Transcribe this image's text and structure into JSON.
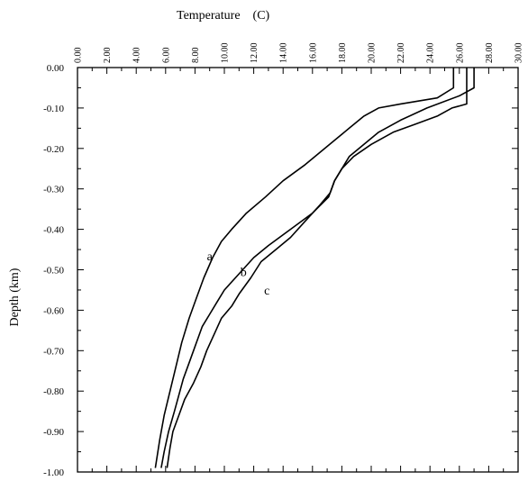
{
  "chart_data": {
    "type": "line",
    "title": "",
    "xlabel": "Temperature    (C)",
    "ylabel": "Depth  (km)",
    "xlim": [
      0,
      30
    ],
    "ylim": [
      -1.0,
      0.0
    ],
    "x_ticks": [
      "0.00",
      "2.00",
      "4.00",
      "6.00",
      "8.00",
      "10.00",
      "12.00",
      "14.00",
      "16.00",
      "18.00",
      "20.00",
      "22.00",
      "24.00",
      "26.00",
      "28.00",
      "30.00"
    ],
    "y_ticks": [
      "0.00",
      "-0.10",
      "-0.20",
      "-0.30",
      "-0.40",
      "-0.50",
      "-0.60",
      "-0.70",
      "-0.80",
      "-0.90",
      "-1.00"
    ],
    "grid": false,
    "axis_position": "x-axis on top",
    "series": [
      {
        "label": "a",
        "points": [
          [
            25.6,
            0.0
          ],
          [
            25.6,
            -0.05
          ],
          [
            24.5,
            -0.075
          ],
          [
            22.0,
            -0.09
          ],
          [
            20.5,
            -0.1
          ],
          [
            19.5,
            -0.12
          ],
          [
            18.5,
            -0.15
          ],
          [
            17.5,
            -0.18
          ],
          [
            16.5,
            -0.21
          ],
          [
            15.5,
            -0.24
          ],
          [
            14.0,
            -0.28
          ],
          [
            12.8,
            -0.32
          ],
          [
            11.5,
            -0.36
          ],
          [
            10.5,
            -0.4
          ],
          [
            9.8,
            -0.43
          ],
          [
            9.2,
            -0.47
          ],
          [
            8.6,
            -0.52
          ],
          [
            8.1,
            -0.57
          ],
          [
            7.6,
            -0.62
          ],
          [
            7.1,
            -0.68
          ],
          [
            6.7,
            -0.74
          ],
          [
            6.3,
            -0.8
          ],
          [
            5.9,
            -0.86
          ],
          [
            5.6,
            -0.92
          ],
          [
            5.3,
            -0.99
          ]
        ]
      },
      {
        "label": "b",
        "points": [
          [
            27.0,
            0.0
          ],
          [
            27.0,
            -0.05
          ],
          [
            26.0,
            -0.07
          ],
          [
            23.8,
            -0.1
          ],
          [
            22.0,
            -0.13
          ],
          [
            20.5,
            -0.16
          ],
          [
            19.5,
            -0.19
          ],
          [
            18.5,
            -0.22
          ],
          [
            18.0,
            -0.25
          ],
          [
            17.5,
            -0.28
          ],
          [
            17.1,
            -0.32
          ],
          [
            16.0,
            -0.36
          ],
          [
            14.5,
            -0.4
          ],
          [
            13.0,
            -0.44
          ],
          [
            12.0,
            -0.47
          ],
          [
            11.0,
            -0.51
          ],
          [
            10.0,
            -0.55
          ],
          [
            9.5,
            -0.58
          ],
          [
            9.0,
            -0.61
          ],
          [
            8.5,
            -0.64
          ],
          [
            8.0,
            -0.69
          ],
          [
            7.6,
            -0.73
          ],
          [
            7.2,
            -0.77
          ],
          [
            6.9,
            -0.81
          ],
          [
            6.6,
            -0.85
          ],
          [
            6.2,
            -0.9
          ],
          [
            5.9,
            -0.95
          ],
          [
            5.7,
            -0.99
          ]
        ]
      },
      {
        "label": "c",
        "points": [
          [
            26.5,
            0.0
          ],
          [
            26.5,
            -0.09
          ],
          [
            25.5,
            -0.1
          ],
          [
            24.5,
            -0.12
          ],
          [
            23.0,
            -0.14
          ],
          [
            21.5,
            -0.16
          ],
          [
            20.0,
            -0.19
          ],
          [
            18.8,
            -0.22
          ],
          [
            18.0,
            -0.25
          ],
          [
            17.5,
            -0.28
          ],
          [
            17.2,
            -0.31
          ],
          [
            16.5,
            -0.34
          ],
          [
            15.5,
            -0.38
          ],
          [
            14.5,
            -0.42
          ],
          [
            13.5,
            -0.45
          ],
          [
            12.5,
            -0.48
          ],
          [
            11.8,
            -0.52
          ],
          [
            11.0,
            -0.56
          ],
          [
            10.5,
            -0.59
          ],
          [
            9.8,
            -0.62
          ],
          [
            9.3,
            -0.66
          ],
          [
            8.8,
            -0.7
          ],
          [
            8.4,
            -0.74
          ],
          [
            7.9,
            -0.78
          ],
          [
            7.3,
            -0.82
          ],
          [
            6.9,
            -0.86
          ],
          [
            6.5,
            -0.9
          ],
          [
            6.3,
            -0.94
          ],
          [
            6.1,
            -0.99
          ]
        ]
      }
    ],
    "annotations": [
      {
        "text": "a",
        "x": 9.0,
        "y": -0.465
      },
      {
        "text": "b",
        "x": 11.3,
        "y": -0.505
      },
      {
        "text": "c",
        "x": 12.9,
        "y": -0.55
      }
    ]
  }
}
